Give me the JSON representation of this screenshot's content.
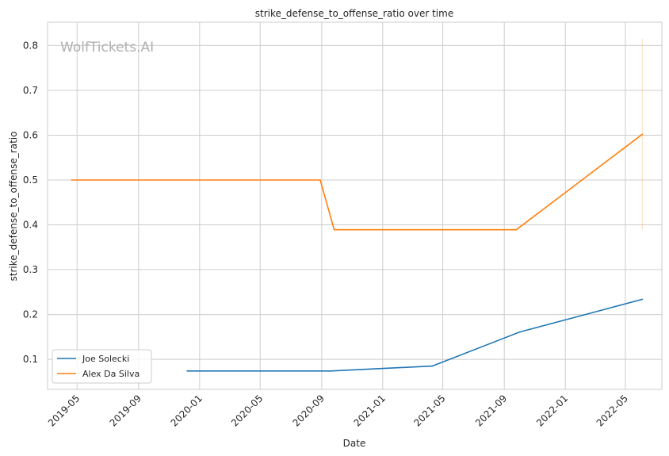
{
  "watermark": "WolfTickets.AI",
  "chart_data": {
    "type": "line",
    "title": "strike_defense_to_offense_ratio over time",
    "xlabel": "Date",
    "ylabel": "strike_defense_to_offense_ratio",
    "x_ticks": [
      "2019-05",
      "2019-09",
      "2020-01",
      "2020-05",
      "2020-09",
      "2021-01",
      "2021-05",
      "2021-09",
      "2022-01",
      "2022-05"
    ],
    "y_ticks": [
      0.1,
      0.2,
      0.3,
      0.4,
      0.5,
      0.6,
      0.7,
      0.8
    ],
    "xlim": [
      "2019-03-03",
      "2022-07-13"
    ],
    "ylim": [
      0.033,
      0.852
    ],
    "grid": true,
    "legend_position": "lower-left",
    "series": [
      {
        "name": "Joe Solecki",
        "color": "#1f77b4",
        "points": [
          {
            "x": "2019-12-07",
            "y": 0.074
          },
          {
            "x": "2020-09-19",
            "y": 0.074
          },
          {
            "x": "2021-04-10",
            "y": 0.085
          },
          {
            "x": "2021-10-02",
            "y": 0.161
          },
          {
            "x": "2022-06-04",
            "y": 0.234
          }
        ]
      },
      {
        "name": "Alex Da Silva",
        "color": "#ff7f0e",
        "points": [
          {
            "x": "2019-04-20",
            "y": 0.5
          },
          {
            "x": "2020-08-29",
            "y": 0.5
          },
          {
            "x": "2020-09-26",
            "y": 0.389
          },
          {
            "x": "2021-09-25",
            "y": 0.389
          },
          {
            "x": "2022-06-04",
            "y": 0.602
          }
        ]
      }
    ],
    "error_bars": [
      {
        "series": "Alex Da Silva",
        "x": "2022-06-04",
        "low": 0.389,
        "high": 0.815
      }
    ]
  }
}
